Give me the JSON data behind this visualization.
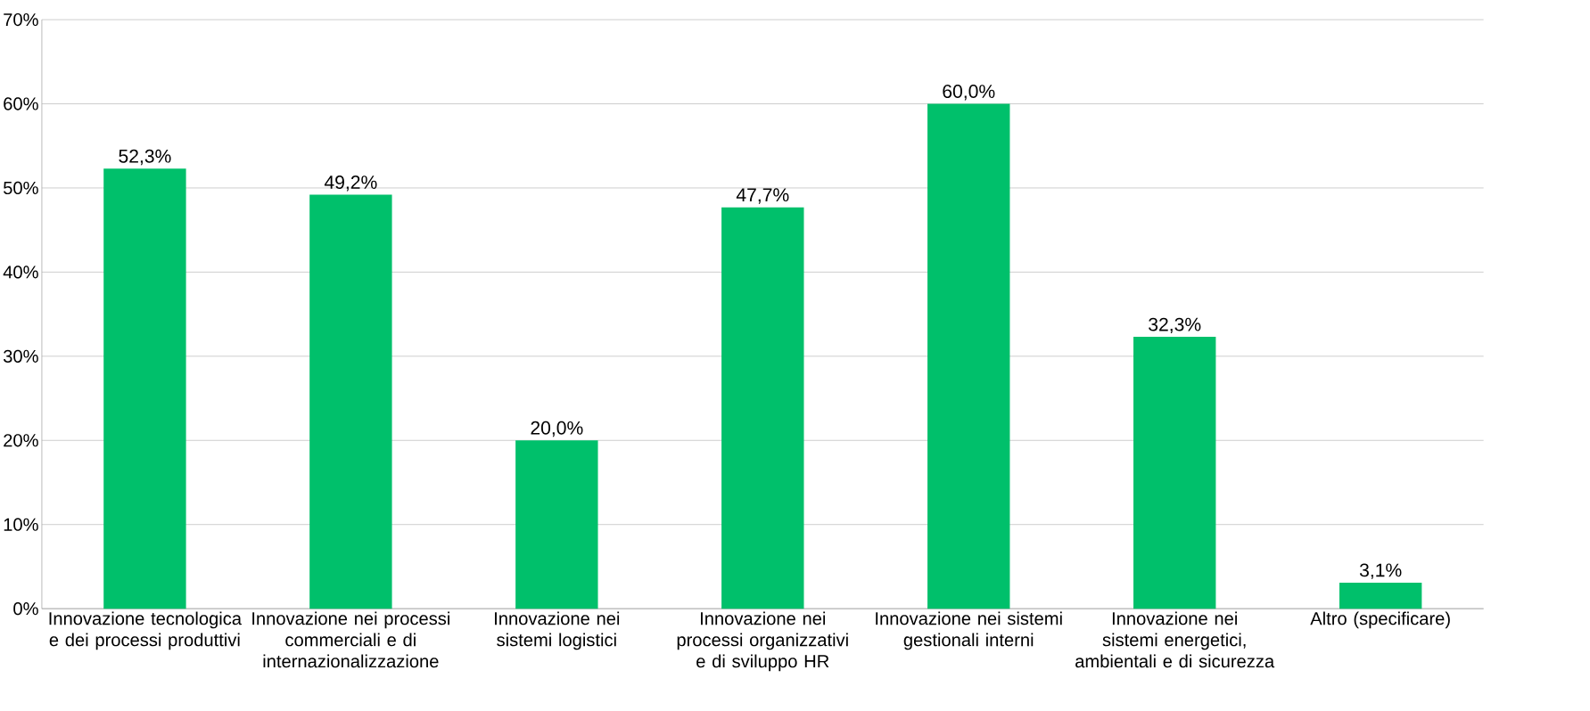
{
  "chart_data": {
    "type": "bar",
    "categories": [
      "Innovazione tecnologica e dei processi produttivi",
      "Innovazione nei processi commerciali e di internazionalizzazione",
      "Innovazione nei sistemi logistici",
      "Innovazione nei processi organizzativi e di sviluppo HR",
      "Innovazione nei sistemi gestionali interni",
      "Innovazione nei sistemi energetici, ambientali e di sicurezza",
      "Altro (specificare)"
    ],
    "values": [
      52.3,
      49.2,
      20.0,
      47.7,
      60.0,
      32.3,
      3.1
    ],
    "value_labels": [
      "52,3%",
      "49,2%",
      "20,0%",
      "47,7%",
      "60,0%",
      "32,3%",
      "3,1%"
    ],
    "color": "#00c06b",
    "ylim": [
      0,
      70
    ],
    "yticks": [
      {
        "value": 0,
        "label": "0%"
      },
      {
        "value": 10,
        "label": "10%"
      },
      {
        "value": 20,
        "label": "20%"
      },
      {
        "value": 30,
        "label": "30%"
      },
      {
        "value": 40,
        "label": "40%"
      },
      {
        "value": 50,
        "label": "50%"
      },
      {
        "value": 60,
        "label": "60%"
      },
      {
        "value": 70,
        "label": "70%"
      }
    ],
    "grid": "y"
  }
}
